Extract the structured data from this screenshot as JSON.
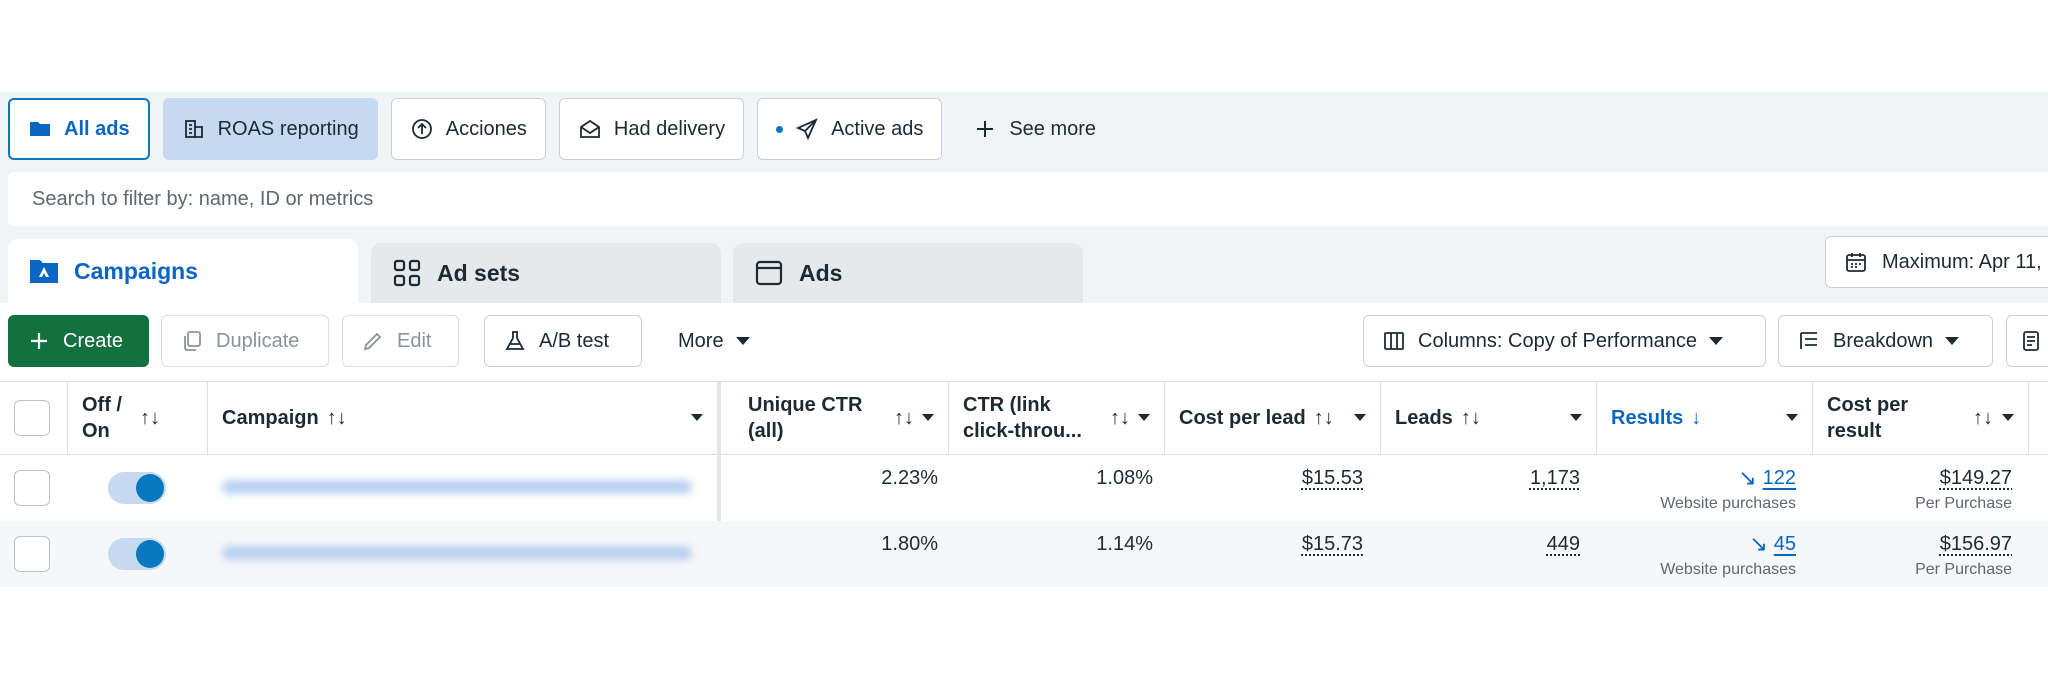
{
  "chips": [
    {
      "label": "All ads",
      "icon": "folder-icon",
      "state": "active"
    },
    {
      "label": "ROAS reporting",
      "icon": "report-icon",
      "state": "highlighted"
    },
    {
      "label": "Acciones",
      "icon": "upload-circle-icon"
    },
    {
      "label": "Had delivery",
      "icon": "envelope-open-icon"
    },
    {
      "label": "Active ads",
      "icon": "send-icon"
    },
    {
      "label": "See more",
      "icon": "plus-icon"
    }
  ],
  "search": {
    "placeholder": "Search to filter by: name, ID or metrics"
  },
  "tabs": {
    "campaigns": "Campaigns",
    "adsets": "Ad sets",
    "ads": "Ads"
  },
  "date_range": "Maximum: Apr 11,",
  "toolbar": {
    "create": "Create",
    "duplicate": "Duplicate",
    "edit": "Edit",
    "abtest": "A/B test",
    "more": "More",
    "columns": "Columns: Copy of Performance",
    "breakdown": "Breakdown"
  },
  "table": {
    "headers": {
      "offon": [
        "Off /",
        "On"
      ],
      "campaign": "Campaign",
      "unique_ctr": [
        "Unique CTR",
        "(all)"
      ],
      "ctr": [
        "CTR (link",
        "click-throu..."
      ],
      "cost_per_lead": "Cost per lead",
      "leads": "Leads",
      "results": "Results",
      "cost_per_result": [
        "Cost per",
        "result"
      ]
    },
    "sort_glyph": "↑↓",
    "sort_desc": "↓",
    "rows": [
      {
        "unique_ctr": "2.23%",
        "ctr": "1.08%",
        "cost_per_lead": "$15.53",
        "leads": "1,173",
        "results": "122",
        "results_sub": "Website purchases",
        "cost_per_result": "$149.27",
        "cpr_sub": "Per Purchase",
        "toggle_on": true
      },
      {
        "unique_ctr": "1.80%",
        "ctr": "1.14%",
        "cost_per_lead": "$15.73",
        "leads": "449",
        "results": "45",
        "results_sub": "Website purchases",
        "cost_per_result": "$156.97",
        "cpr_sub": "Per Purchase",
        "toggle_on": true
      }
    ]
  },
  "colors": {
    "accent": "#0a66c2",
    "create": "#13703f",
    "chip_highlight": "#c5daf0"
  }
}
